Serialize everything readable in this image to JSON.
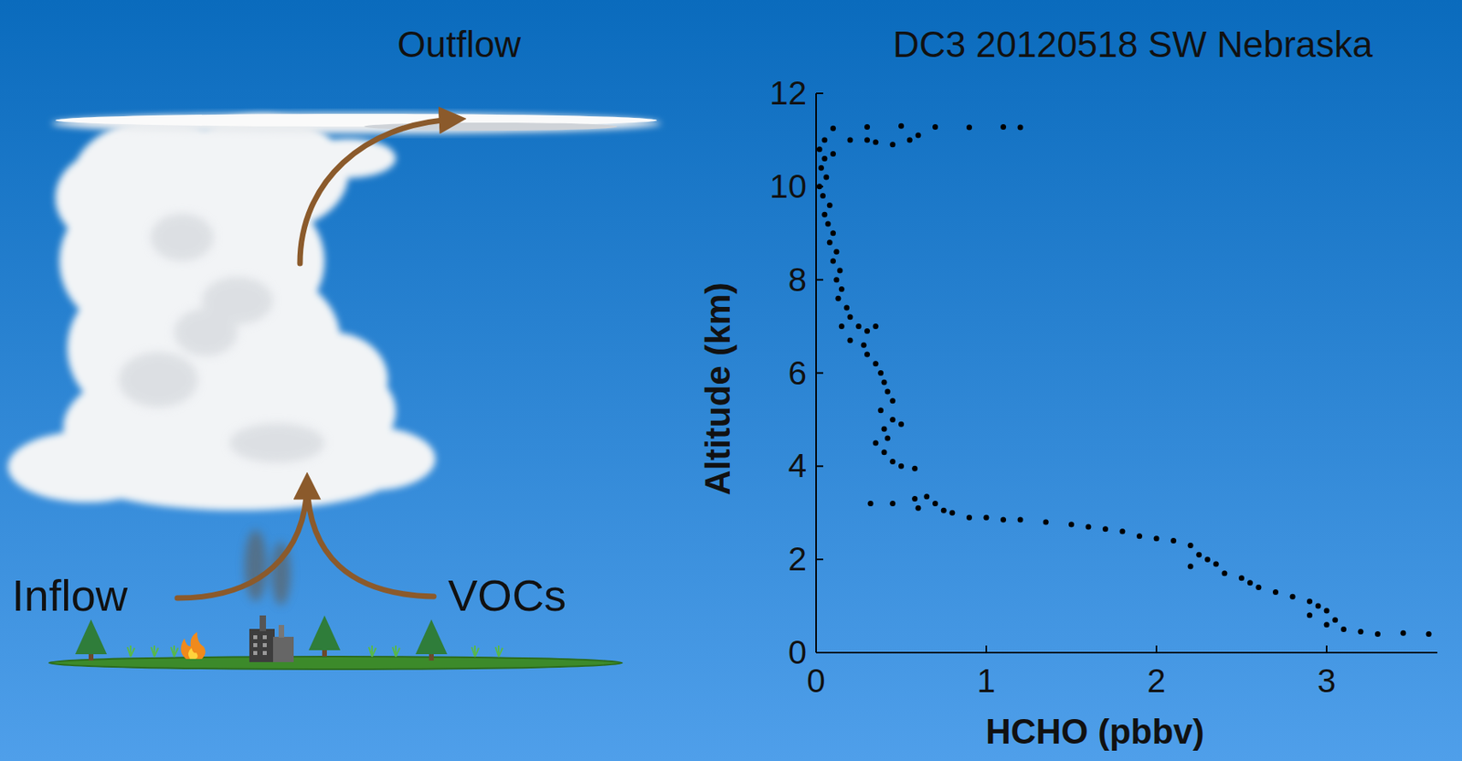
{
  "diagram": {
    "title": "Outflow",
    "labels": [
      "Inflow",
      "VOCs"
    ]
  },
  "chart_data": {
    "type": "scatter",
    "title": "DC3 20120518 SW Nebraska",
    "x_label": "HCHO (pbbv)",
    "y_label": "Altitude (km)",
    "marker": "circle",
    "color": "#000000",
    "xlim": [
      0,
      3.65
    ],
    "ylim": [
      0,
      12
    ],
    "xticks": [
      0,
      1,
      2,
      3
    ],
    "yticks": [
      0,
      2,
      4,
      6,
      8,
      10,
      12
    ],
    "x": [
      0.1,
      0.3,
      0.5,
      0.7,
      0.9,
      1.1,
      1.2,
      0.6,
      0.45,
      0.35,
      0.55,
      0.05,
      0.2,
      0.3,
      0.02,
      0.05,
      0.1,
      0.03,
      0.06,
      0.02,
      0.04,
      0.08,
      0.05,
      0.07,
      0.1,
      0.08,
      0.12,
      0.1,
      0.14,
      0.12,
      0.15,
      0.13,
      0.18,
      0.2,
      0.15,
      0.25,
      0.3,
      0.35,
      0.2,
      0.28,
      0.3,
      0.35,
      0.38,
      0.4,
      0.42,
      0.45,
      0.38,
      0.45,
      0.5,
      0.4,
      0.42,
      0.35,
      0.4,
      0.45,
      0.5,
      0.58,
      0.32,
      0.45,
      0.58,
      0.65,
      0.7,
      0.6,
      0.75,
      0.8,
      0.9,
      1.0,
      1.1,
      1.2,
      1.35,
      1.5,
      1.6,
      1.7,
      1.8,
      1.9,
      2.0,
      2.1,
      2.2,
      2.25,
      2.3,
      2.35,
      2.2,
      2.4,
      2.5,
      2.55,
      2.6,
      2.7,
      2.8,
      2.9,
      2.95,
      3.0,
      2.9,
      3.05,
      3.0,
      3.1,
      3.2,
      3.3,
      3.45,
      3.6
    ],
    "values": [
      11.25,
      11.28,
      11.3,
      11.28,
      11.27,
      11.28,
      11.27,
      11.1,
      10.9,
      10.95,
      11.0,
      11.0,
      11.0,
      11.0,
      10.8,
      10.6,
      10.7,
      10.4,
      10.2,
      10.0,
      9.8,
      9.6,
      9.4,
      9.2,
      9.0,
      8.8,
      8.6,
      8.4,
      8.2,
      8.0,
      7.8,
      7.6,
      7.4,
      7.2,
      7.0,
      7.0,
      6.9,
      7.0,
      6.7,
      6.6,
      6.4,
      6.2,
      6.0,
      5.8,
      5.6,
      5.4,
      5.2,
      5.0,
      4.9,
      4.8,
      4.6,
      4.5,
      4.3,
      4.1,
      4.0,
      3.95,
      3.2,
      3.2,
      3.3,
      3.35,
      3.2,
      3.1,
      3.05,
      3.0,
      2.9,
      2.9,
      2.85,
      2.85,
      2.8,
      2.75,
      2.7,
      2.65,
      2.6,
      2.5,
      2.45,
      2.4,
      2.3,
      2.1,
      2.0,
      1.9,
      1.85,
      1.7,
      1.6,
      1.5,
      1.4,
      1.3,
      1.2,
      1.1,
      1.0,
      0.9,
      0.8,
      0.7,
      0.6,
      0.5,
      0.45,
      0.4,
      0.42,
      0.4
    ]
  }
}
